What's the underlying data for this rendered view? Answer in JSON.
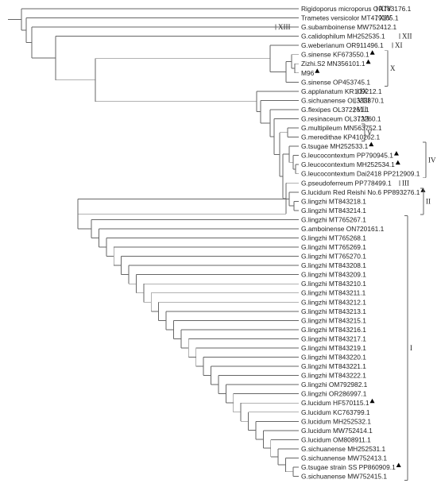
{
  "taxa": [
    {
      "name": "Rigidoporus microporus OR783176.1",
      "mark": false
    },
    {
      "name": "Trametes versicolor MT479165.1",
      "mark": false
    },
    {
      "name": "G.subamboinense MW752412.1",
      "mark": false
    },
    {
      "name": "G.calidophilum MH252535.1",
      "mark": false
    },
    {
      "name": "G.weberianum OR911496.1",
      "mark": false
    },
    {
      "name": "G.sinense KF673550.1",
      "mark": true
    },
    {
      "name": "Zizhi.S2 MN356101.1",
      "mark": true
    },
    {
      "name": "M96",
      "mark": true
    },
    {
      "name": "G.sinense OP453745.1",
      "mark": false
    },
    {
      "name": "G.applanatum KR109212.1",
      "mark": false
    },
    {
      "name": "G.sichuanense OL333870.1",
      "mark": false
    },
    {
      "name": "G.flexipes OL372261.1",
      "mark": false
    },
    {
      "name": "G.resinaceum OL372260.1",
      "mark": false
    },
    {
      "name": "G.multipileum MN563752.1",
      "mark": false
    },
    {
      "name": "G.meredithae KP410262.1",
      "mark": false
    },
    {
      "name": "G.tsugae MH252533.1",
      "mark": true
    },
    {
      "name": "G.leucocontextum PP790945.1",
      "mark": true
    },
    {
      "name": "G.leucocontextum MH252534.1",
      "mark": true
    },
    {
      "name": "G.leucocontextum Dai2418 PP212909.1",
      "mark": false
    },
    {
      "name": "G.pseudoferreum PP778499.1",
      "mark": false
    },
    {
      "name": "G.lucidum Red Reishi No.6 PP893276.1",
      "mark": true
    },
    {
      "name": "G.lingzhi MT843218.1",
      "mark": false
    },
    {
      "name": "G.lingzhi MT843214.1",
      "mark": false
    },
    {
      "name": "G.lingzhi MT765267.1",
      "mark": false
    },
    {
      "name": "G.amboinense ON720161.1",
      "mark": false
    },
    {
      "name": "G.lingzhi MT765268.1",
      "mark": false
    },
    {
      "name": "G.lingzhi MT765269.1",
      "mark": false
    },
    {
      "name": "G.lingzhi MT765270.1",
      "mark": false
    },
    {
      "name": "G.lingzhi MT843208.1",
      "mark": false
    },
    {
      "name": "G.lingzhi MT843209.1",
      "mark": false
    },
    {
      "name": "G.lingzhi MT843210.1",
      "mark": false
    },
    {
      "name": "G.lingzhi MT843211.1",
      "mark": false
    },
    {
      "name": "G.lingzhi MT843212.1",
      "mark": false
    },
    {
      "name": "G.lingzhi MT843213.1",
      "mark": false
    },
    {
      "name": "G.lingzhi MT843215.1",
      "mark": false
    },
    {
      "name": "G.lingzhi MT843216.1",
      "mark": false
    },
    {
      "name": "G.lingzhi MT843217.1",
      "mark": false
    },
    {
      "name": "G.lingzhi MT843219.1",
      "mark": false
    },
    {
      "name": "G.lingzhi MT843220.1",
      "mark": false
    },
    {
      "name": "G.lingzhi MT843221.1",
      "mark": false
    },
    {
      "name": "G.lingzhi MT843222.1",
      "mark": false
    },
    {
      "name": "G.lingzhi OM792982.1",
      "mark": false
    },
    {
      "name": "G.lingzhi OR286997.1",
      "mark": false
    },
    {
      "name": "G.lucidum HF570115.1",
      "mark": true
    },
    {
      "name": "G.lucidum KC763799.1",
      "mark": false
    },
    {
      "name": "G.lucidum MH252532.1",
      "mark": false
    },
    {
      "name": "G.lucidum MW752414.1",
      "mark": false
    },
    {
      "name": "G.lucidum OM808911.1",
      "mark": false
    },
    {
      "name": "G.sichuanense MH252531.1",
      "mark": false
    },
    {
      "name": "G.sichuanense MW752413.1",
      "mark": false
    },
    {
      "name": "G.tsugae strain SS PP860909.1",
      "mark": true
    },
    {
      "name": "G.sichuanense MW752415.1",
      "mark": false
    }
  ],
  "clades": [
    {
      "label": "XIV",
      "first": 0,
      "last": 0
    },
    {
      "label": "XIV",
      "first": 1,
      "last": 1
    },
    {
      "label": "XIII",
      "first": 2,
      "last": 2
    },
    {
      "label": "XII",
      "first": 3,
      "last": 3
    },
    {
      "label": "XI",
      "first": 4,
      "last": 4
    },
    {
      "label": "X",
      "first": 5,
      "last": 8
    },
    {
      "label": "IX",
      "first": 9,
      "last": 9
    },
    {
      "label": "VIII",
      "first": 10,
      "last": 10
    },
    {
      "label": "VII",
      "first": 11,
      "last": 11
    },
    {
      "label": "VI",
      "first": 12,
      "last": 12
    },
    {
      "label": "V",
      "first": 13,
      "last": 14
    },
    {
      "label": "IV",
      "first": 15,
      "last": 18
    },
    {
      "label": "III",
      "first": 19,
      "last": 19
    },
    {
      "label": "II",
      "first": 20,
      "last": 22
    },
    {
      "label": "I",
      "first": 23,
      "last": 51
    }
  ],
  "colors": {
    "branch": "#666666",
    "text": "#222222",
    "marker": "#000000"
  }
}
